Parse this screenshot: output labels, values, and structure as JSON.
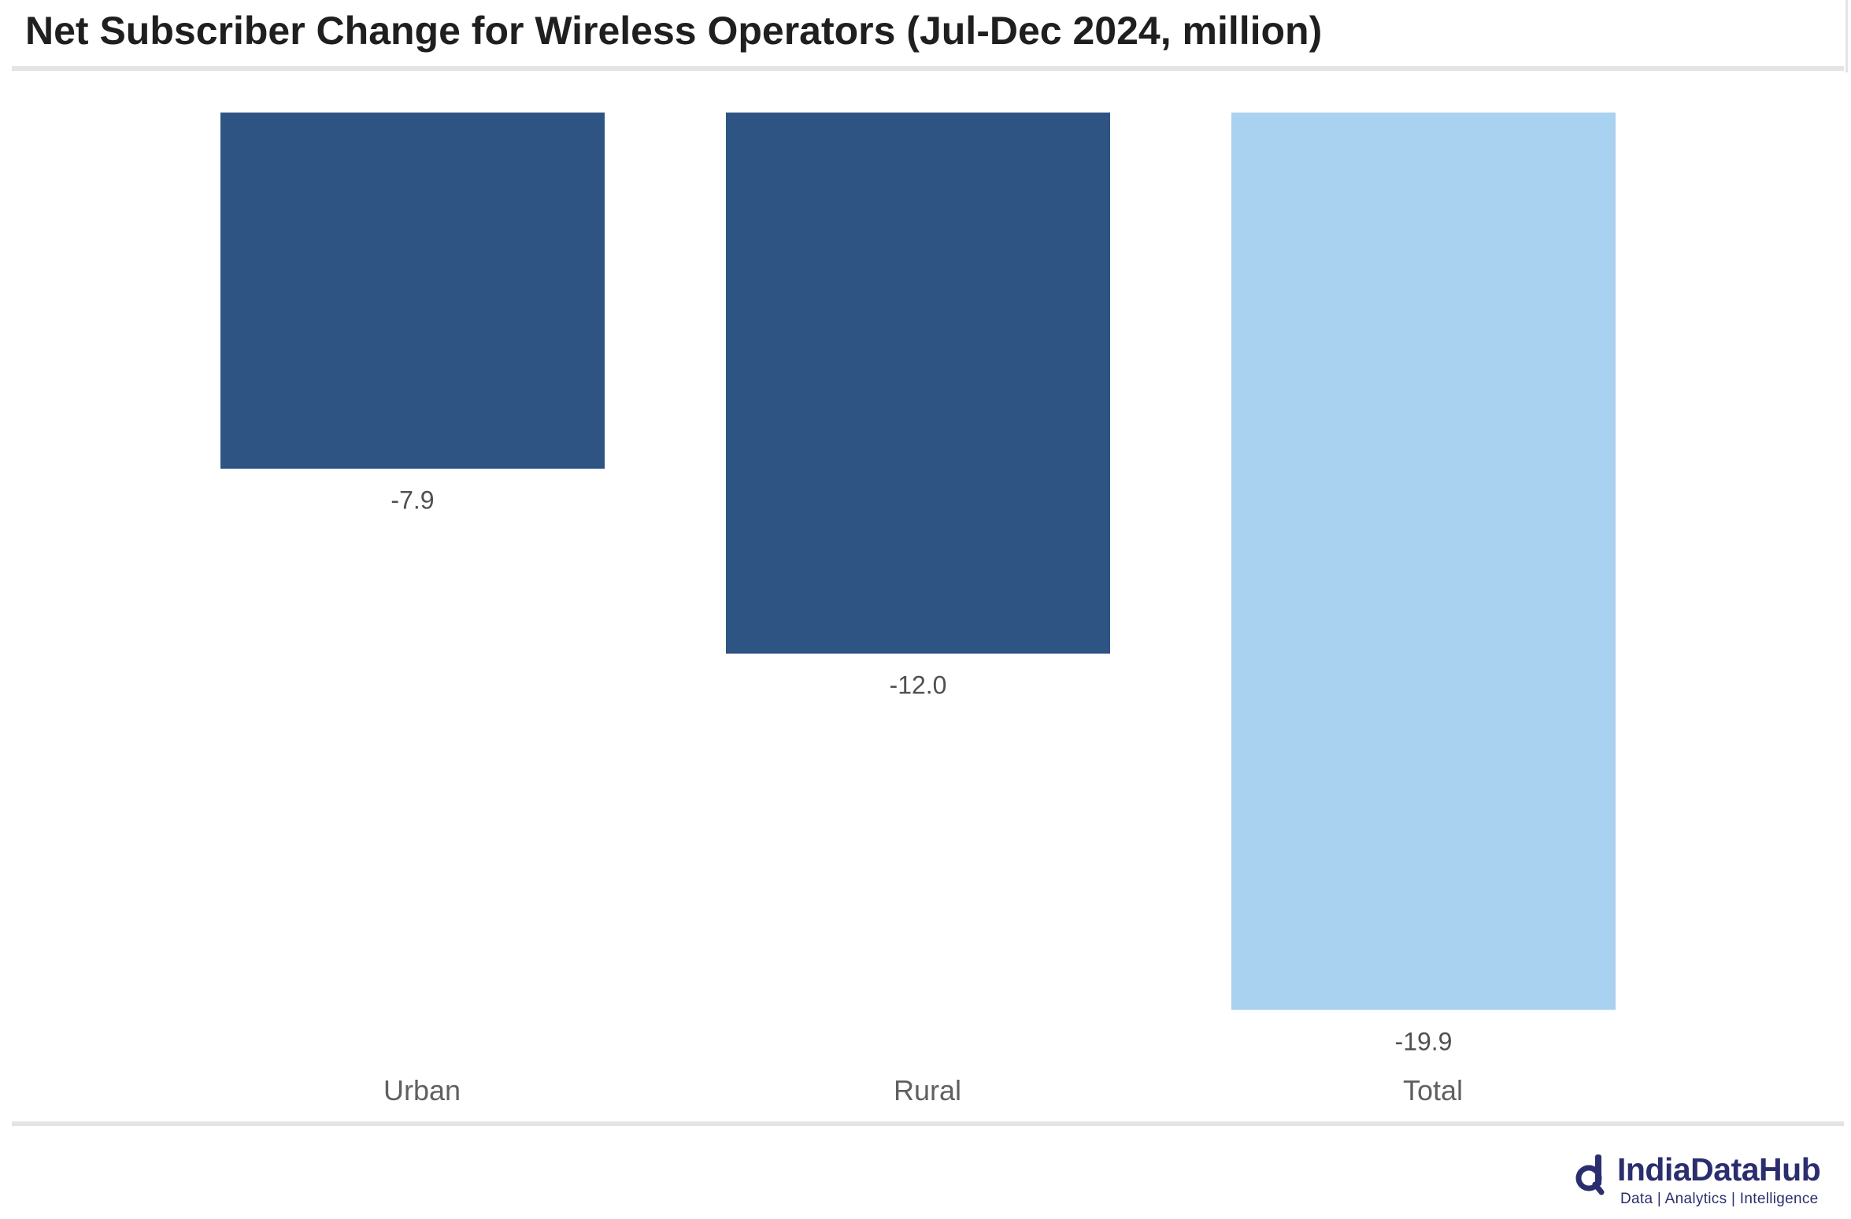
{
  "chart_data": {
    "type": "bar",
    "title": "Net Subscriber Change for Wireless Operators (Jul-Dec 2024, million)",
    "categories": [
      "Urban",
      "Rural",
      "Total"
    ],
    "values": [
      -7.9,
      -12.0,
      -19.9
    ],
    "data_labels": [
      "-7.9",
      "-12.0",
      "-19.9"
    ],
    "bar_colors": [
      "#2e5483",
      "#2e5483",
      "#a9d1f0"
    ],
    "ylim": [
      -20,
      0
    ],
    "grid": false,
    "legend": "none",
    "xlabel": "",
    "ylabel": ""
  },
  "branding": {
    "name": "IndiaDataHub",
    "tagline": "Data | Analytics | Intelligence",
    "color": "#2a2e6e",
    "icon": "magnifier-d-logo-icon"
  }
}
